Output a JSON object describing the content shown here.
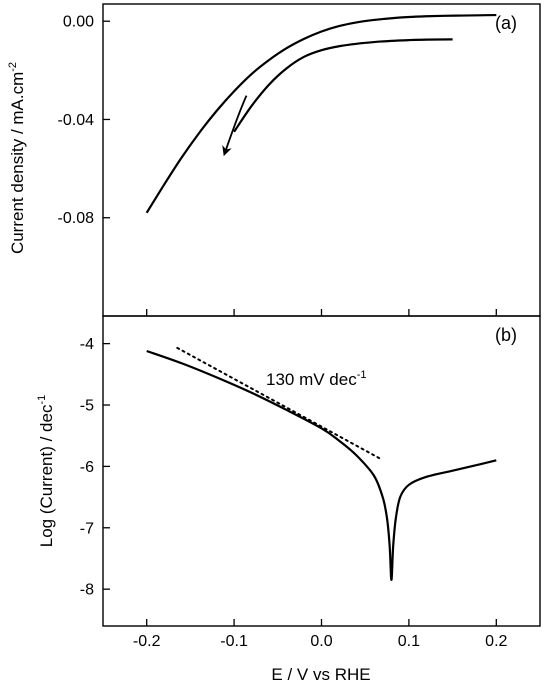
{
  "chart_data": [
    {
      "type": "line",
      "panel_label": "(a)",
      "title": "",
      "xlabel": "E / V vs RHE",
      "ylabel": "Current density / mA.cm",
      "ylabel_sup": "-2",
      "xlim": [
        -0.25,
        0.25
      ],
      "ylim": [
        -0.12,
        0.007
      ],
      "y_ticks": [
        0.0,
        -0.04,
        -0.08
      ],
      "y_tick_labels": [
        "0.00",
        "-0.04",
        "-0.08"
      ],
      "grid": false,
      "legend": "none",
      "series": [
        {
          "x": [
            -0.2,
            -0.18,
            -0.16,
            -0.14,
            -0.12,
            -0.1,
            -0.08,
            -0.06,
            -0.04,
            -0.02,
            0.0,
            0.02,
            0.04,
            0.06,
            0.08,
            0.1,
            0.12,
            0.14,
            0.16,
            0.18,
            0.2
          ],
          "values": [
            -0.078,
            -0.0665,
            -0.0555,
            -0.0455,
            -0.0365,
            -0.0285,
            -0.0215,
            -0.0158,
            -0.011,
            -0.0072,
            -0.0042,
            -0.002,
            -0.0005,
            0.0005,
            0.0012,
            0.0017,
            0.002,
            0.0022,
            0.0023,
            0.0024,
            0.0025
          ]
        },
        {
          "x": [
            -0.1,
            -0.08,
            -0.06,
            -0.04,
            -0.02,
            0.0,
            0.02,
            0.04,
            0.06,
            0.08,
            0.1,
            0.12,
            0.15
          ],
          "values": [
            -0.045,
            -0.0345,
            -0.0258,
            -0.0192,
            -0.0145,
            -0.0118,
            -0.0102,
            -0.0092,
            -0.0085,
            -0.008,
            -0.0077,
            -0.0075,
            -0.0074
          ]
        }
      ],
      "arrow": {
        "from": [
          -0.095,
          -0.036
        ],
        "to": [
          -0.11,
          -0.053
        ]
      }
    },
    {
      "type": "line",
      "panel_label": "(b)",
      "title": "",
      "xlabel": "E / V vs RHE",
      "ylabel": "Log (Current) / dec",
      "ylabel_sup": "-1",
      "xlim": [
        -0.25,
        0.25
      ],
      "ylim": [
        -8.6,
        -3.55
      ],
      "x_ticks": [
        -0.2,
        -0.1,
        0.0,
        0.1,
        0.2
      ],
      "x_tick_labels": [
        "-0.2",
        "-0.1",
        "0.0",
        "0.1",
        "0.2"
      ],
      "y_ticks": [
        -4,
        -5,
        -6,
        -7,
        -8
      ],
      "y_tick_labels": [
        "-4",
        "-5",
        "-6",
        "-7",
        "-8"
      ],
      "grid": false,
      "legend": "none",
      "annotation": {
        "text": "130 mV dec",
        "sup": "-1",
        "x": -0.1,
        "y": -4.6
      },
      "series": [
        {
          "x": [
            -0.2,
            -0.16,
            -0.12,
            -0.08,
            -0.04,
            0.0,
            0.02,
            0.04,
            0.06,
            0.07,
            0.075,
            0.078,
            0.08,
            0.082,
            0.085,
            0.09,
            0.1,
            0.12,
            0.15,
            0.18,
            0.2
          ],
          "values": [
            -4.12,
            -4.32,
            -4.55,
            -4.8,
            -5.08,
            -5.38,
            -5.58,
            -5.82,
            -6.15,
            -6.5,
            -6.85,
            -7.3,
            -7.85,
            -7.3,
            -6.85,
            -6.5,
            -6.3,
            -6.17,
            -6.07,
            -5.97,
            -5.9
          ]
        },
        {
          "style": "dotted",
          "x": [
            -0.165,
            0.068
          ],
          "values": [
            -4.07,
            -5.88
          ]
        }
      ]
    }
  ]
}
